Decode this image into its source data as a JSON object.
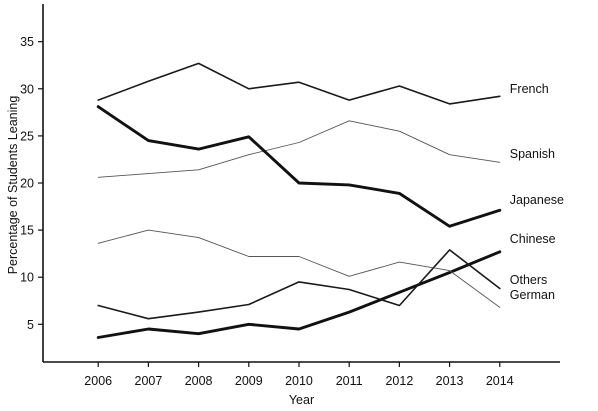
{
  "chart_data": {
    "type": "line",
    "title": "",
    "xlabel": "Year",
    "ylabel": "Percentage of Students Leaning",
    "x": [
      2006,
      2007,
      2008,
      2009,
      2010,
      2011,
      2012,
      2013,
      2014
    ],
    "x_tick_labels": [
      "2006",
      "2007",
      "2008",
      "2009",
      "2010",
      "2011",
      "2012",
      "2013",
      "2014"
    ],
    "y_ticks": [
      5,
      10,
      15,
      20,
      25,
      30,
      35
    ],
    "y_tick_labels": [
      "5",
      "10",
      "15",
      "20",
      "25",
      "30",
      "35"
    ],
    "xlim": [
      2004.9,
      2015.2
    ],
    "ylim": [
      1,
      39
    ],
    "grid": false,
    "legend": "none (series labeled at line ends)",
    "series": [
      {
        "name": "French",
        "color": "#1a1a1a",
        "weight": "medium",
        "values": [
          28.8,
          30.8,
          32.7,
          30.0,
          30.7,
          28.8,
          30.3,
          28.4,
          29.2
        ]
      },
      {
        "name": "Spanish",
        "color": "#555555",
        "weight": "thin",
        "values": [
          20.6,
          21.0,
          21.4,
          23.0,
          24.3,
          26.6,
          25.5,
          23.0,
          22.2
        ]
      },
      {
        "name": "Japanese",
        "color": "#111111",
        "weight": "thick",
        "values": [
          28.1,
          24.5,
          23.6,
          24.9,
          20.0,
          19.8,
          18.9,
          15.4,
          17.1
        ]
      },
      {
        "name": "Chinese",
        "color": "#111111",
        "weight": "thick",
        "values": [
          3.6,
          4.5,
          4.0,
          5.0,
          4.5,
          6.3,
          8.4,
          10.5,
          12.7
        ]
      },
      {
        "name": "Others",
        "color": "#1a1a1a",
        "weight": "medium",
        "values": [
          7.0,
          5.6,
          6.3,
          7.1,
          9.5,
          8.7,
          7.0,
          12.9,
          8.8
        ]
      },
      {
        "name": "German",
        "color": "#555555",
        "weight": "thin",
        "values": [
          13.6,
          15.0,
          14.2,
          12.2,
          12.2,
          10.1,
          11.6,
          10.7,
          6.8
        ]
      }
    ]
  }
}
